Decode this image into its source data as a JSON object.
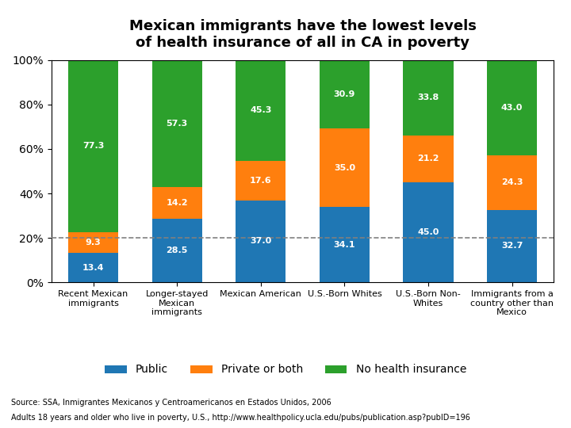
{
  "chart_data": {
    "type": "bar",
    "stacked": true,
    "data_labels": true,
    "title": "Mexican immigrants have the lowest levels\nof health insurance of all in CA in poverty",
    "categories": [
      "Recent Mexican\nimmigrants",
      "Longer-stayed\nMexican\nimmigrants",
      "Mexican American",
      "U.S.-Born Whites",
      "U.S.-Born Non-\nWhites",
      "Immigrants from a\ncountry other than\nMexico"
    ],
    "series": [
      {
        "name": "Public",
        "values": [
          13.4,
          28.5,
          37.0,
          34.1,
          45.0,
          32.7
        ]
      },
      {
        "name": "Private or both",
        "values": [
          9.3,
          14.2,
          17.6,
          35.0,
          21.2,
          24.3
        ]
      },
      {
        "name": "No health insurance",
        "values": [
          77.3,
          57.3,
          45.3,
          30.9,
          33.8,
          43.0
        ]
      }
    ],
    "ylim": [
      0,
      100
    ],
    "yticks": [
      {
        "value": 0,
        "label": "0%"
      },
      {
        "value": 20,
        "label": "20%"
      },
      {
        "value": 40,
        "label": "40%"
      },
      {
        "value": 60,
        "label": "60%"
      },
      {
        "value": 80,
        "label": "80%"
      },
      {
        "value": 100,
        "label": "100%"
      }
    ],
    "reference_line": 20,
    "grid": false,
    "legend": "lower center",
    "source": [
      "Source: SSA, Inmigrantes Mexicanos y Centroamericanos en Estados Unidos, 2006",
      "Adults 18 years and older who live in poverty, U.S., http://www.healthpolicy.ucla.edu/pubs/publication.asp?pubID=196"
    ]
  }
}
